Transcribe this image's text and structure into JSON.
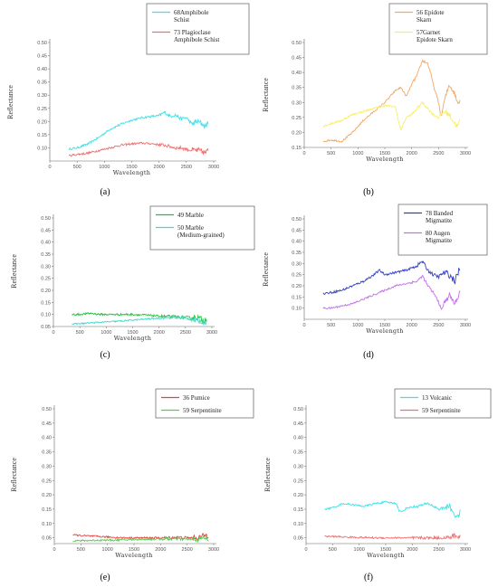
{
  "chart_data": [
    {
      "type": "line",
      "panel": "(a)",
      "xlabel": "Wavelength",
      "ylabel": "Reflectance",
      "xlim": [
        0,
        3000
      ],
      "ylim": [
        0.05,
        0.5
      ],
      "xticks": [
        0,
        500,
        1000,
        1500,
        2000,
        2500,
        3000
      ],
      "yticks": [
        "0.50",
        "0.45",
        "0.40",
        "0.35",
        "0.30",
        "0.25",
        "0.20",
        "0.15",
        "0.10"
      ],
      "series": [
        {
          "name": "68Amphibole Schist",
          "legend_lines": [
            "68Amphibole",
            "Schist"
          ],
          "color": "#3fe0e8",
          "noise": 0.004,
          "x": [
            350,
            500,
            700,
            900,
            1100,
            1300,
            1500,
            1700,
            1900,
            2000,
            2100,
            2200,
            2300,
            2400,
            2500,
            2600,
            2700,
            2800,
            2850,
            2900
          ],
          "y": [
            0.095,
            0.1,
            0.115,
            0.14,
            0.17,
            0.19,
            0.205,
            0.215,
            0.22,
            0.222,
            0.235,
            0.22,
            0.225,
            0.21,
            0.215,
            0.19,
            0.2,
            0.19,
            0.18,
            0.2
          ]
        },
        {
          "name": "73 Plagioclase Amphibole Schist",
          "legend_lines": [
            "73 Plagioclase",
            "Amphibole Schist"
          ],
          "color": "#f07070",
          "noise": 0.004,
          "x": [
            350,
            500,
            700,
            900,
            1100,
            1300,
            1500,
            1700,
            1900,
            2000,
            2100,
            2200,
            2300,
            2400,
            2500,
            2600,
            2700,
            2800,
            2850,
            2900
          ],
          "y": [
            0.07,
            0.075,
            0.08,
            0.09,
            0.1,
            0.11,
            0.115,
            0.118,
            0.115,
            0.112,
            0.11,
            0.105,
            0.1,
            0.1,
            0.095,
            0.09,
            0.09,
            0.085,
            0.08,
            0.09
          ]
        }
      ]
    },
    {
      "type": "line",
      "panel": "(b)",
      "xlabel": "Wavelength",
      "ylabel": "Reflectance",
      "xlim": [
        0,
        3000
      ],
      "ylim": [
        0.15,
        0.5
      ],
      "xticks": [
        0,
        500,
        1000,
        1500,
        2000,
        2500,
        3000
      ],
      "yticks": [
        "0.50",
        "0.45",
        "0.40",
        "0.35",
        "0.30",
        "0.25",
        "0.20",
        "0.15"
      ],
      "series": [
        {
          "name": "56 Epidote Skarn",
          "legend_lines": [
            "56 Epidote",
            "Skarn"
          ],
          "color": "#f0a868",
          "noise": 0.003,
          "x": [
            350,
            500,
            700,
            900,
            1100,
            1300,
            1500,
            1700,
            1800,
            1900,
            2000,
            2100,
            2200,
            2300,
            2350,
            2400,
            2500,
            2550,
            2600,
            2700,
            2800,
            2850,
            2900
          ],
          "y": [
            0.17,
            0.175,
            0.17,
            0.2,
            0.24,
            0.27,
            0.3,
            0.34,
            0.35,
            0.32,
            0.36,
            0.39,
            0.44,
            0.43,
            0.4,
            0.36,
            0.3,
            0.25,
            0.3,
            0.36,
            0.33,
            0.3,
            0.31
          ]
        },
        {
          "name": "57Garnet Epidote Skarn",
          "legend_lines": [
            "57Garnet",
            "Epidote Skarn"
          ],
          "color": "#f8f060",
          "noise": 0.003,
          "x": [
            350,
            500,
            700,
            900,
            1100,
            1300,
            1500,
            1700,
            1750,
            1800,
            1900,
            2000,
            2100,
            2200,
            2300,
            2400,
            2500,
            2600,
            2700,
            2800,
            2850,
            2900
          ],
          "y": [
            0.22,
            0.23,
            0.24,
            0.26,
            0.27,
            0.28,
            0.29,
            0.285,
            0.24,
            0.21,
            0.25,
            0.26,
            0.28,
            0.3,
            0.28,
            0.26,
            0.25,
            0.27,
            0.26,
            0.23,
            0.22,
            0.24
          ]
        }
      ]
    },
    {
      "type": "line",
      "panel": "(c)",
      "xlabel": "Wavelength",
      "ylabel": "Reflectance",
      "xlim": [
        0,
        3000
      ],
      "ylim": [
        0.05,
        0.5
      ],
      "xticks": [
        0,
        500,
        1000,
        1500,
        2000,
        2500,
        3000
      ],
      "yticks": [
        "0.50",
        "0.45",
        "0.40",
        "0.35",
        "0.30",
        "0.25",
        "0.20",
        "0.15",
        "0.10",
        "0.05"
      ],
      "series": [
        {
          "name": "49 Marble",
          "legend_lines": [
            "49 Marble"
          ],
          "color": "#22c040",
          "noise": 0.004,
          "x": [
            350,
            500,
            700,
            900,
            1100,
            1300,
            1500,
            1700,
            1900,
            2100,
            2300,
            2500,
            2600,
            2700,
            2800,
            2850,
            2900
          ],
          "y": [
            0.1,
            0.1,
            0.105,
            0.1,
            0.1,
            0.1,
            0.1,
            0.098,
            0.095,
            0.092,
            0.09,
            0.088,
            0.085,
            0.09,
            0.08,
            0.075,
            0.085
          ]
        },
        {
          "name": "50 Marble (Medium-grained)",
          "legend_lines": [
            "50 Marble",
            "(Medium-grained)"
          ],
          "color": "#40d8d0",
          "noise": 0.003,
          "x": [
            350,
            500,
            700,
            900,
            1100,
            1300,
            1500,
            1700,
            1900,
            2100,
            2300,
            2500,
            2600,
            2700,
            2800,
            2850,
            2900
          ],
          "y": [
            0.06,
            0.062,
            0.065,
            0.068,
            0.07,
            0.073,
            0.077,
            0.08,
            0.083,
            0.086,
            0.087,
            0.085,
            0.08,
            0.075,
            0.07,
            0.065,
            0.07
          ]
        }
      ]
    },
    {
      "type": "line",
      "panel": "(d)",
      "xlabel": "Wavelength",
      "ylabel": "Reflectance",
      "xlim": [
        0,
        3000
      ],
      "ylim": [
        0.05,
        0.5
      ],
      "xticks": [
        0,
        500,
        1000,
        1500,
        2000,
        2500,
        3000
      ],
      "yticks": [
        "0.50",
        "0.45",
        "0.40",
        "0.35",
        "0.30",
        "0.25",
        "0.20",
        "0.15",
        "0.10"
      ],
      "series": [
        {
          "name": "78 Banded Migmatite",
          "legend_lines": [
            "78 Banded",
            "Migmatite"
          ],
          "color": "#3040c8",
          "noise": 0.005,
          "x": [
            350,
            500,
            700,
            900,
            1100,
            1300,
            1400,
            1500,
            1700,
            1900,
            2100,
            2200,
            2300,
            2400,
            2500,
            2600,
            2700,
            2800,
            2850,
            2900
          ],
          "y": [
            0.165,
            0.17,
            0.18,
            0.2,
            0.22,
            0.25,
            0.27,
            0.25,
            0.26,
            0.27,
            0.29,
            0.31,
            0.27,
            0.25,
            0.24,
            0.26,
            0.25,
            0.22,
            0.25,
            0.28
          ]
        },
        {
          "name": "80 Augen Migmatite",
          "legend_lines": [
            "80 Augen",
            "Migmatite"
          ],
          "color": "#c070e8",
          "noise": 0.004,
          "x": [
            350,
            500,
            700,
            900,
            1100,
            1300,
            1500,
            1700,
            1900,
            2100,
            2200,
            2300,
            2400,
            2500,
            2550,
            2600,
            2700,
            2800,
            2850,
            2900
          ],
          "y": [
            0.1,
            0.1,
            0.11,
            0.12,
            0.14,
            0.16,
            0.18,
            0.2,
            0.21,
            0.22,
            0.245,
            0.2,
            0.17,
            0.13,
            0.09,
            0.12,
            0.16,
            0.12,
            0.14,
            0.18
          ]
        }
      ]
    },
    {
      "type": "line",
      "panel": "(e)",
      "xlabel": "Wavelength",
      "ylabel": "Reflectance",
      "xlim": [
        0,
        3000
      ],
      "ylim": [
        0.03,
        0.5
      ],
      "xticks": [
        0,
        500,
        1000,
        1500,
        2000,
        2500,
        3000
      ],
      "yticks": [
        "0.50",
        "0.45",
        "0.40",
        "0.35",
        "0.30",
        "0.25",
        "0.20",
        "0.15",
        "0.10",
        "0.05"
      ],
      "series": [
        {
          "name": "36 Pumice",
          "legend_lines": [
            "36 Pumice"
          ],
          "color": "#e84040",
          "noise": 0.003,
          "x": [
            350,
            500,
            700,
            900,
            1100,
            1300,
            1500,
            1700,
            1900,
            2100,
            2300,
            2500,
            2700,
            2850,
            2900
          ],
          "y": [
            0.06,
            0.058,
            0.056,
            0.054,
            0.052,
            0.05,
            0.05,
            0.05,
            0.05,
            0.05,
            0.052,
            0.05,
            0.05,
            0.06,
            0.055
          ]
        },
        {
          "name": "59 Serpentinite",
          "legend_lines": [
            "59 Serpentinite"
          ],
          "color": "#50d050",
          "noise": 0.003,
          "x": [
            350,
            500,
            700,
            900,
            1100,
            1300,
            1500,
            1700,
            1900,
            2100,
            2300,
            2500,
            2700,
            2850,
            2900
          ],
          "y": [
            0.04,
            0.04,
            0.041,
            0.042,
            0.042,
            0.043,
            0.044,
            0.045,
            0.045,
            0.046,
            0.046,
            0.045,
            0.045,
            0.05,
            0.045
          ]
        }
      ]
    },
    {
      "type": "line",
      "panel": "(f)",
      "xlabel": "Wavelength",
      "ylabel": "Reflectance",
      "xlim": [
        0,
        3000
      ],
      "ylim": [
        0.03,
        0.5
      ],
      "xticks": [
        0,
        500,
        1000,
        1500,
        2000,
        2500,
        3000
      ],
      "yticks": [
        "0.50",
        "0.45",
        "0.40",
        "0.35",
        "0.30",
        "0.25",
        "0.20",
        "0.15",
        "0.10",
        "0.05"
      ],
      "series": [
        {
          "name": "13 Volcanic",
          "legend_lines": [
            "13 Volcanic"
          ],
          "color": "#40e0e8",
          "noise": 0.003,
          "x": [
            350,
            500,
            700,
            900,
            1100,
            1300,
            1500,
            1700,
            1750,
            1800,
            1900,
            2100,
            2300,
            2400,
            2500,
            2600,
            2700,
            2800,
            2850,
            2900
          ],
          "y": [
            0.15,
            0.155,
            0.17,
            0.165,
            0.16,
            0.17,
            0.175,
            0.17,
            0.145,
            0.14,
            0.155,
            0.16,
            0.17,
            0.16,
            0.15,
            0.155,
            0.16,
            0.13,
            0.12,
            0.14
          ]
        },
        {
          "name": "59 Serpentinite",
          "legend_lines": [
            "59 Serpentinite"
          ],
          "color": "#f07070",
          "noise": 0.003,
          "x": [
            350,
            500,
            700,
            900,
            1100,
            1300,
            1500,
            1700,
            1900,
            2100,
            2300,
            2500,
            2700,
            2800,
            2850,
            2900
          ],
          "y": [
            0.055,
            0.055,
            0.053,
            0.052,
            0.051,
            0.05,
            0.05,
            0.05,
            0.05,
            0.05,
            0.05,
            0.05,
            0.05,
            0.06,
            0.05,
            0.055
          ]
        }
      ]
    }
  ]
}
